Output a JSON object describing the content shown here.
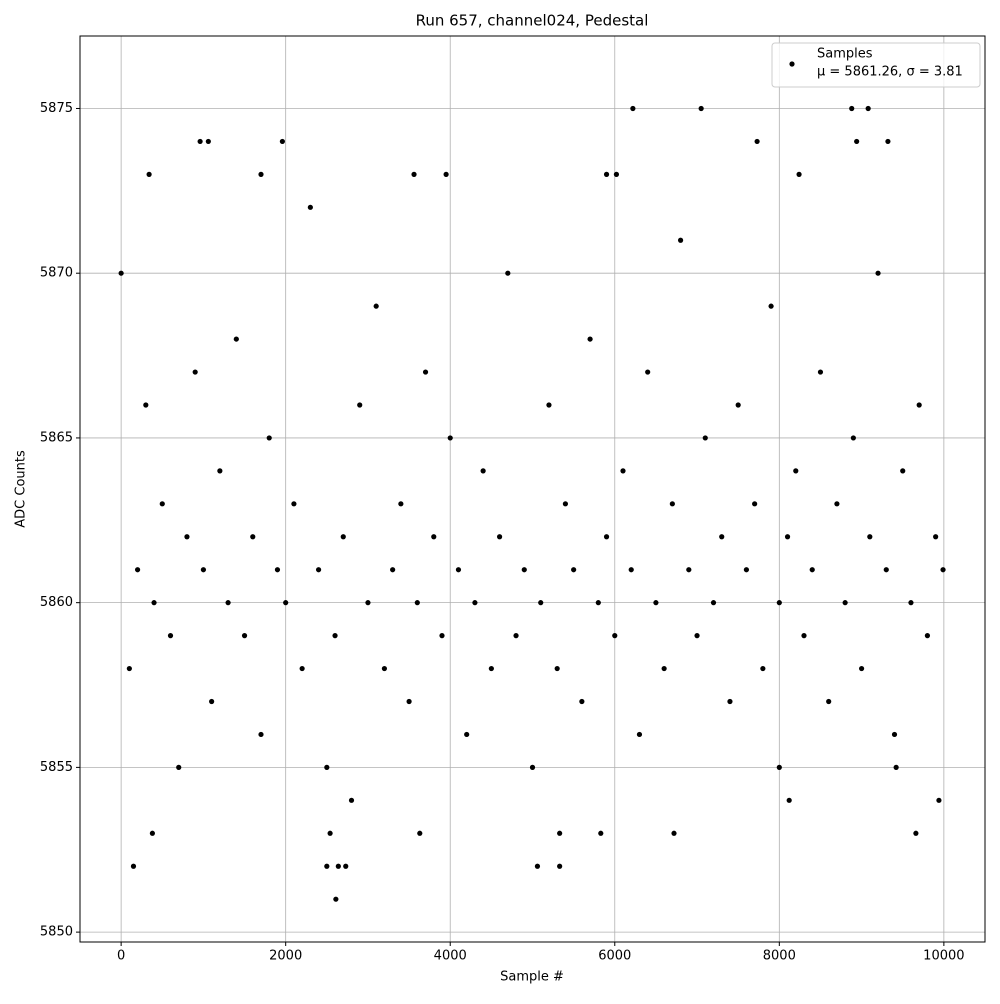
{
  "chart_data": {
    "type": "scatter",
    "title": "Run 657, channel024, Pedestal",
    "x_label": "Sample #",
    "y_label": "ADC Counts",
    "annotation": "μ = 5861.26, σ = 3.81",
    "legend": "upper right",
    "grid": true,
    "xlim": [
      -500,
      10500
    ],
    "ylim": [
      5849.7,
      5877.2
    ],
    "xticks": [
      0,
      2000,
      4000,
      6000,
      8000,
      10000
    ],
    "yticks": [
      5850,
      5855,
      5860,
      5865,
      5870,
      5875
    ],
    "x": [
      0,
      100,
      200,
      300,
      400,
      500,
      600,
      700,
      800,
      900,
      1000,
      1100,
      1200,
      1300,
      1400,
      1500,
      1600,
      1700,
      1800,
      1900,
      2000,
      2100,
      2200,
      2300,
      2400,
      2500,
      2600,
      2700,
      2800,
      2900,
      3000,
      3100,
      3200,
      3300,
      3400,
      3500,
      3600,
      3700,
      3800,
      3900,
      4000,
      4100,
      4200,
      4300,
      4400,
      4500,
      4600,
      4700,
      4800,
      4900,
      5000,
      5100,
      5200,
      5300,
      5400,
      5500,
      5600,
      5700,
      5800,
      5900,
      6000,
      6100,
      6200,
      6300,
      6400,
      6500,
      6600,
      6700,
      6800,
      6900,
      7000,
      7100,
      7200,
      7300,
      7400,
      7500,
      7600,
      7700,
      7800,
      7900,
      8000,
      8100,
      8200,
      8300,
      8400,
      8500,
      8600,
      8700,
      8800,
      8900,
      9000,
      9100,
      9200,
      9300,
      9400,
      9500,
      9600,
      9700,
      9800,
      9900,
      9990,
      150,
      2610,
      2500,
      2640,
      2730,
      5060,
      5330,
      6220,
      7050,
      8880,
      9080,
      960,
      1060,
      1960,
      7730,
      8940,
      9320,
      340,
      1700,
      3560,
      3950,
      5900,
      6020,
      8240,
      380,
      3630,
      5330,
      5830,
      6720,
      9660,
      2540,
      8000,
      9420,
      8120,
      9940
    ],
    "series": [
      {
        "name": "Samples",
        "color": "#000000",
        "values": [
          5870,
          5858,
          5861,
          5866,
          5860,
          5863,
          5859,
          5855,
          5862,
          5867,
          5861,
          5857,
          5864,
          5860,
          5868,
          5859,
          5862,
          5856,
          5865,
          5861,
          5860,
          5863,
          5858,
          5872,
          5861,
          5855,
          5859,
          5862,
          5854,
          5866,
          5860,
          5869,
          5858,
          5861,
          5863,
          5857,
          5860,
          5867,
          5862,
          5859,
          5865,
          5861,
          5856,
          5860,
          5864,
          5858,
          5862,
          5870,
          5859,
          5861,
          5855,
          5860,
          5866,
          5858,
          5863,
          5861,
          5857,
          5868,
          5860,
          5862,
          5859,
          5864,
          5861,
          5856,
          5867,
          5860,
          5858,
          5863,
          5871,
          5861,
          5859,
          5865,
          5860,
          5862,
          5857,
          5866,
          5861,
          5863,
          5858,
          5869,
          5860,
          5862,
          5864,
          5859,
          5861,
          5867,
          5857,
          5863,
          5860,
          5865,
          5858,
          5862,
          5870,
          5861,
          5856,
          5864,
          5860,
          5866,
          5859,
          5862,
          5861,
          5852,
          5851,
          5852,
          5852,
          5852,
          5852,
          5852,
          5875,
          5875,
          5875,
          5875,
          5874,
          5874,
          5874,
          5874,
          5874,
          5874,
          5873,
          5873,
          5873,
          5873,
          5873,
          5873,
          5873,
          5853,
          5853,
          5853,
          5853,
          5853,
          5853,
          5853,
          5855,
          5855,
          5854,
          5854
        ]
      }
    ]
  }
}
